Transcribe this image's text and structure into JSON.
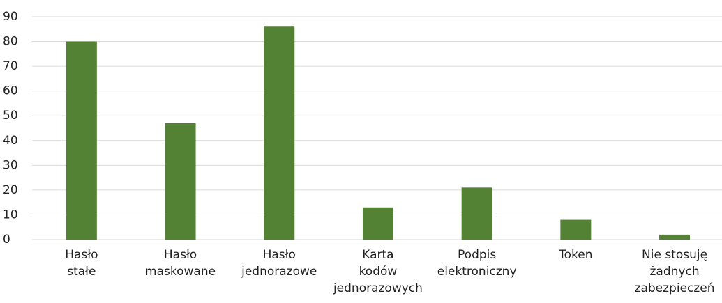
{
  "chart_data": {
    "type": "bar",
    "categories": [
      "Hasło\nstałe",
      "Hasło\nmaskowane",
      "Hasło\njednorazowe",
      "Karta\nkodów\njednorazowych",
      "Podpis\nelektroniczny",
      "Token",
      "Nie stosuję\nżadnych\nzabezpieczeń"
    ],
    "values": [
      80,
      47,
      86,
      13,
      21,
      8,
      2
    ],
    "color": "#548235",
    "ylim": [
      0,
      90
    ],
    "yticks": [
      0,
      10,
      20,
      30,
      40,
      50,
      60,
      70,
      80,
      90
    ],
    "grid": true
  }
}
